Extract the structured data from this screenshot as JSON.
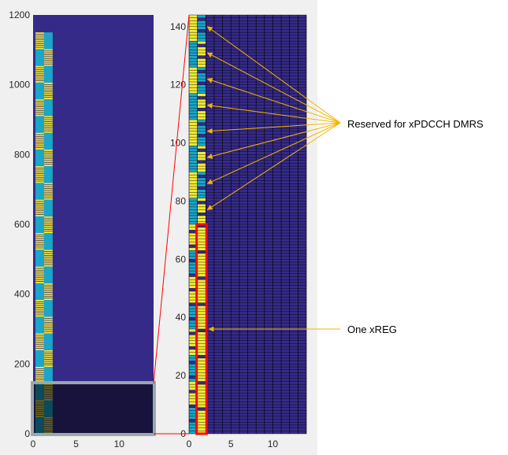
{
  "chart_data": [
    {
      "type": "heatmap",
      "title": "",
      "xlabel": "",
      "ylabel": "",
      "xlim": [
        0,
        14
      ],
      "ylim": [
        0,
        1200
      ],
      "xticks": [
        "0",
        "5",
        "10"
      ],
      "xtick_values": [
        0,
        5,
        10
      ],
      "yticks": [
        "0",
        "200",
        "400",
        "600",
        "800",
        "1000",
        "1200"
      ],
      "ytick_values": [
        0,
        200,
        400,
        600,
        800,
        1000,
        1200
      ],
      "grid": "pattern occupies columns 0-2 up to subcarrier 1150; remaining grid empty",
      "pattern_top": 1150,
      "zoom_region": {
        "x": [
          0,
          14
        ],
        "y": [
          0,
          144
        ]
      }
    },
    {
      "type": "heatmap",
      "title": "",
      "xlabel": "",
      "ylabel": "",
      "xlim": [
        0,
        14
      ],
      "ylim": [
        0,
        144
      ],
      "xticks": [
        "0",
        "5",
        "10"
      ],
      "xtick_values": [
        0,
        5,
        10
      ],
      "yticks": [
        "0",
        "20",
        "40",
        "60",
        "80",
        "100",
        "120",
        "140"
      ],
      "ytick_values": [
        0,
        20,
        40,
        60,
        80,
        100,
        120,
        140
      ],
      "grid": "on",
      "dmrs_rows": [
        75,
        79,
        84,
        88,
        93,
        97,
        102,
        106,
        111,
        115,
        120,
        124,
        129,
        133,
        138,
        142
      ],
      "xreg_highlight": {
        "x": [
          1,
          2
        ],
        "y": [
          0,
          72
        ]
      },
      "xreg_arrow_y": 36
    }
  ],
  "annotations": {
    "dmrs_label": "Reserved for xPDCCH DMRS",
    "xreg_label": "One xREG"
  },
  "colors": {
    "background_panel": "#f0f0f0",
    "grid_fill": "#352a87",
    "cyan_cell": "#1aa6c9",
    "yellow_cell": "#f2e93a",
    "dark_cell": "#1f1a55",
    "annotation_arrow": "#f5b400",
    "highlight_red": "#ff0000",
    "zoom_box": "#9aa9ad"
  }
}
